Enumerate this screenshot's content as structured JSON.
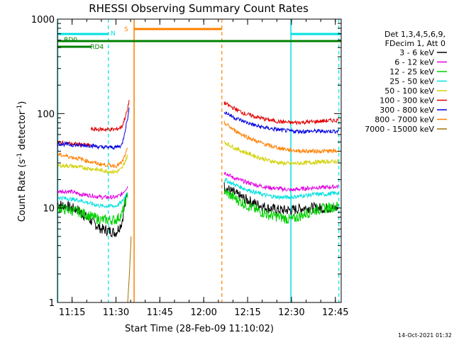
{
  "chart_data": {
    "type": "line",
    "title": "RHESSI Observing Summary Count Rates",
    "xlabel": "Start Time (28-Feb-09 11:10:02)",
    "ylabel_main": "Count Rate (s",
    "ylabel_sup1": "-1",
    "ylabel_mid": " detector",
    "ylabel_sup2": "-1",
    "ylabel_end": ")",
    "x_unit": "minutes after 11:10:02",
    "xlim": [
      0,
      97
    ],
    "ylim": [
      1,
      1000
    ],
    "y_scale": "log",
    "x_ticks": [
      {
        "label": "11:15",
        "value": 5
      },
      {
        "label": "11:30",
        "value": 20
      },
      {
        "label": "11:45",
        "value": 35
      },
      {
        "label": "12:00",
        "value": 50
      },
      {
        "label": "12:15",
        "value": 65
      },
      {
        "label": "12:30",
        "value": 80
      },
      {
        "label": "12:45",
        "value": 95
      }
    ],
    "y_ticks": [
      {
        "label": "1",
        "value": 1
      },
      {
        "label": "10",
        "value": 10
      },
      {
        "label": "100",
        "value": 100
      },
      {
        "label": "1000",
        "value": 1000
      }
    ],
    "legend_placement": "right",
    "legend_header": [
      "Det 1,3,4,5,6,9,",
      "FDecim 1, Att 0"
    ],
    "series": [
      {
        "name": "3 - 6 keV",
        "color": "#000000",
        "segments": [
          [
            [
              0,
              11
            ],
            [
              3,
              10.5
            ],
            [
              7,
              9.5
            ],
            [
              11,
              7.5
            ],
            [
              15,
              6
            ],
            [
              20,
              5.5
            ],
            [
              22,
              7
            ],
            [
              24,
              16
            ]
          ],
          [
            [
              57,
              17
            ],
            [
              58,
              16
            ],
            [
              61,
              14
            ],
            [
              64,
              12.5
            ],
            [
              68,
              11
            ],
            [
              72,
              10
            ],
            [
              76,
              9.5
            ],
            [
              80,
              9.5
            ],
            [
              84,
              10
            ],
            [
              88,
              10
            ],
            [
              92,
              10
            ],
            [
              96,
              10
            ]
          ]
        ]
      },
      {
        "name": "6 - 12 keV",
        "color": "#e000e0",
        "segments": [
          [
            [
              0,
              15
            ],
            [
              4,
              15
            ],
            [
              8,
              14
            ],
            [
              12,
              13.5
            ],
            [
              15,
              13
            ],
            [
              20,
              13
            ],
            [
              22,
              14
            ],
            [
              24,
              17
            ]
          ],
          [
            [
              57,
              24
            ],
            [
              60,
              21
            ],
            [
              64,
              19
            ],
            [
              68,
              17.5
            ],
            [
              72,
              16.5
            ],
            [
              76,
              16
            ],
            [
              80,
              15.5
            ],
            [
              84,
              16
            ],
            [
              88,
              16.5
            ],
            [
              92,
              16.5
            ],
            [
              96,
              17
            ]
          ]
        ]
      },
      {
        "name": "12 - 25 keV",
        "color": "#00d000",
        "segments": [
          [
            [
              0,
              10
            ],
            [
              4,
              9.5
            ],
            [
              8,
              9
            ],
            [
              12,
              8
            ],
            [
              15,
              7.5
            ],
            [
              20,
              7.5
            ],
            [
              22,
              8.5
            ],
            [
              24,
              14
            ]
          ],
          [
            [
              57,
              15
            ],
            [
              60,
              13
            ],
            [
              64,
              11
            ],
            [
              68,
              9.5
            ],
            [
              72,
              8.5
            ],
            [
              76,
              8
            ],
            [
              80,
              7.5
            ],
            [
              84,
              8.5
            ],
            [
              88,
              9.5
            ],
            [
              92,
              10
            ],
            [
              96,
              10.5
            ]
          ]
        ]
      },
      {
        "name": "25 - 50 keV",
        "color": "#00e0e0",
        "segments": [
          [
            [
              0,
              13
            ],
            [
              4,
              12.5
            ],
            [
              8,
              12
            ],
            [
              12,
              11
            ],
            [
              15,
              10.5
            ],
            [
              20,
              10.5
            ],
            [
              22,
              11.5
            ],
            [
              24,
              15
            ]
          ],
          [
            [
              57,
              20
            ],
            [
              60,
              18
            ],
            [
              64,
              16
            ],
            [
              68,
              14.5
            ],
            [
              72,
              13.5
            ],
            [
              76,
              13
            ],
            [
              80,
              13
            ],
            [
              84,
              13.5
            ],
            [
              88,
              14
            ],
            [
              92,
              14
            ],
            [
              96,
              14.5
            ]
          ]
        ]
      },
      {
        "name": "50 - 100 keV",
        "color": "#d0d000",
        "segments": [
          [
            [
              0,
              28
            ],
            [
              4,
              28
            ],
            [
              8,
              27
            ],
            [
              12,
              26
            ],
            [
              15,
              25
            ],
            [
              20,
              24
            ],
            [
              22,
              26
            ],
            [
              24,
              36
            ]
          ],
          [
            [
              57,
              50
            ],
            [
              60,
              44
            ],
            [
              64,
              39
            ],
            [
              68,
              35
            ],
            [
              72,
              32
            ],
            [
              76,
              30
            ],
            [
              80,
              29.5
            ],
            [
              84,
              30
            ],
            [
              88,
              30.5
            ],
            [
              92,
              31
            ],
            [
              96,
              31
            ]
          ]
        ]
      },
      {
        "name": "100 - 300 keV",
        "color": "#e00000",
        "segments": [
          [
            [
              0,
              50
            ],
            [
              4,
              48
            ],
            [
              8,
              47
            ],
            [
              11.5,
              46
            ]
          ],
          [
            [
              11.5,
              68
            ],
            [
              15,
              68
            ],
            [
              20,
              68
            ],
            [
              22,
              72
            ],
            [
              24,
              110
            ],
            [
              24.5,
              140
            ]
          ],
          [
            [
              57,
              130
            ],
            [
              60,
              115
            ],
            [
              64,
              100
            ],
            [
              68,
              92
            ],
            [
              72,
              86
            ],
            [
              76,
              82
            ],
            [
              80,
              80
            ],
            [
              84,
              81
            ],
            [
              88,
              82
            ],
            [
              92,
              84
            ],
            [
              96,
              85
            ]
          ]
        ]
      },
      {
        "name": "300 - 800 keV",
        "color": "#0000e0",
        "segments": [
          [
            [
              0,
              48
            ],
            [
              4,
              47
            ],
            [
              8,
              46
            ],
            [
              11.5,
              46
            ],
            [
              15,
              44
            ],
            [
              20,
              44
            ],
            [
              22,
              46
            ],
            [
              24,
              90
            ],
            [
              24.5,
              110
            ]
          ],
          [
            [
              57,
              105
            ],
            [
              60,
              92
            ],
            [
              64,
              82
            ],
            [
              68,
              74
            ],
            [
              72,
              70
            ],
            [
              76,
              67
            ],
            [
              80,
              65
            ],
            [
              84,
              65
            ],
            [
              88,
              65
            ],
            [
              92,
              65
            ],
            [
              96,
              65
            ]
          ]
        ]
      },
      {
        "name": "800 - 7000 keV",
        "color": "#ff8000",
        "segments": [
          [
            [
              0,
              37
            ],
            [
              4,
              35
            ],
            [
              8,
              33
            ],
            [
              11,
              31
            ],
            [
              15,
              29
            ],
            [
              20,
              28
            ],
            [
              22,
              30
            ],
            [
              24,
              42
            ]
          ],
          [
            [
              57,
              80
            ],
            [
              60,
              68
            ],
            [
              64,
              58
            ],
            [
              68,
              51
            ],
            [
              72,
              46
            ],
            [
              76,
              43
            ],
            [
              80,
              41
            ],
            [
              84,
              40
            ],
            [
              88,
              40
            ],
            [
              92,
              40
            ],
            [
              96,
              40
            ]
          ]
        ]
      },
      {
        "name": "7000 - 15000 keV",
        "color": "#a07000",
        "segments": [
          [
            [
              24,
              1
            ],
            [
              24.6,
              2
            ],
            [
              25.2,
              5
            ]
          ]
        ]
      }
    ],
    "annotations": [
      {
        "label": "N",
        "color": "#00e0e0",
        "x": 19,
        "y": 640
      },
      {
        "label": "S",
        "color": "#ff8000",
        "x": 24,
        "y": 760
      },
      {
        "label": "RD0",
        "color": "#008000",
        "x": 4.5,
        "y": 600
      },
      {
        "label": "RD4",
        "color": "#008000",
        "x": 13.5,
        "y": 490
      }
    ],
    "timestamp": "14-Oct-2021 01:32"
  }
}
